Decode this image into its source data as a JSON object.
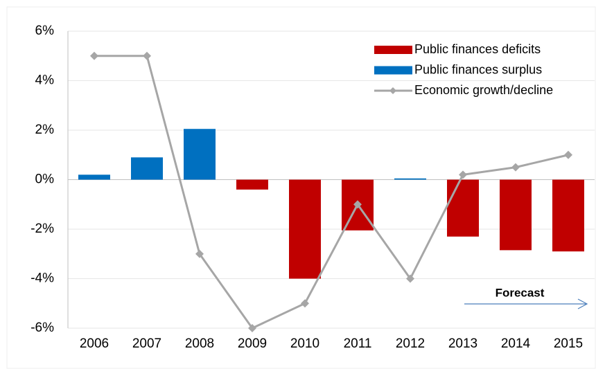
{
  "chart_data": {
    "type": "bar-line",
    "categories": [
      "2006",
      "2007",
      "2008",
      "2009",
      "2010",
      "2011",
      "2012",
      "2013",
      "2014",
      "2015"
    ],
    "series": [
      {
        "name": "Public finances deficits",
        "type": "bar",
        "color": "#c00000",
        "values": [
          null,
          null,
          null,
          -0.4,
          -4.0,
          -2.05,
          null,
          -2.3,
          -2.85,
          -2.9
        ]
      },
      {
        "name": "Public finances surplus",
        "type": "bar",
        "color": "#0070c0",
        "values": [
          0.2,
          0.9,
          2.05,
          null,
          null,
          null,
          0.05,
          null,
          null,
          null
        ]
      },
      {
        "name": "Economic growth/decline",
        "type": "line",
        "color": "#a6a6a6",
        "values": [
          5,
          5,
          -3,
          -6,
          -5,
          -1,
          -4,
          0.2,
          0.5,
          1.0
        ]
      }
    ],
    "ylim": [
      -6,
      6
    ],
    "yticks": [
      {
        "value": -6,
        "label": "-6%"
      },
      {
        "value": -4,
        "label": "-4%"
      },
      {
        "value": -2,
        "label": "-2%"
      },
      {
        "value": 0,
        "label": "0%"
      },
      {
        "value": 2,
        "label": "2%"
      },
      {
        "value": 4,
        "label": "4%"
      },
      {
        "value": 6,
        "label": "6%"
      }
    ],
    "grid": true,
    "legend": "top-right",
    "annotation": "Forecast"
  }
}
